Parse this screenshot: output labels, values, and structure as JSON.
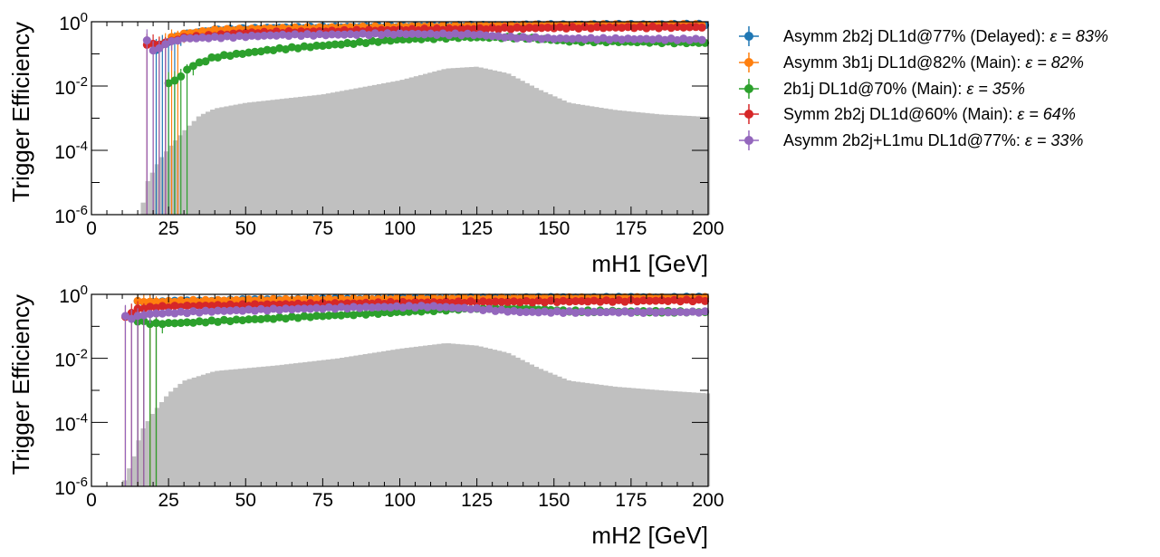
{
  "chart_data": [
    {
      "type": "scatter",
      "xlabel": "mH1 [GeV]",
      "ylabel": "Trigger Efficiency",
      "xlim": [
        0,
        200
      ],
      "ylim": [
        1e-06,
        1
      ],
      "yscale": "log",
      "x_ticks": [
        "0",
        "25",
        "50",
        "75",
        "100",
        "125",
        "150",
        "175",
        "200"
      ],
      "y_ticks": [
        {
          "base": "10",
          "exp": "-6"
        },
        {
          "base": "10",
          "exp": "-4"
        },
        {
          "base": "10",
          "exp": "-2"
        },
        {
          "base": "10",
          "exp": "0"
        }
      ],
      "hist_anchors": [
        [
          16,
          1e-06
        ],
        [
          18,
          1e-05
        ],
        [
          22,
          5e-05
        ],
        [
          26,
          0.00015
        ],
        [
          30,
          0.0004
        ],
        [
          35,
          0.0012
        ],
        [
          40,
          0.002
        ],
        [
          50,
          0.003
        ],
        [
          75,
          0.0055
        ],
        [
          100,
          0.015
        ],
        [
          115,
          0.035
        ],
        [
          125,
          0.04
        ],
        [
          135,
          0.025
        ],
        [
          145,
          0.008
        ],
        [
          155,
          0.003
        ],
        [
          170,
          0.0018
        ],
        [
          185,
          0.0013
        ],
        [
          200,
          0.0011
        ]
      ],
      "series_anchors": [
        [
          [
            21,
            0.14
          ],
          [
            25,
            0.25
          ],
          [
            30,
            0.4
          ],
          [
            40,
            0.55
          ],
          [
            60,
            0.65
          ],
          [
            100,
            0.72
          ],
          [
            150,
            0.8
          ],
          [
            200,
            0.82
          ]
        ],
        [
          [
            22,
            0.15
          ],
          [
            25,
            0.3
          ],
          [
            30,
            0.42
          ],
          [
            40,
            0.55
          ],
          [
            60,
            0.62
          ],
          [
            100,
            0.7
          ],
          [
            150,
            0.78
          ],
          [
            200,
            0.8
          ]
        ],
        [
          [
            25,
            0.012
          ],
          [
            27,
            0.015
          ],
          [
            29,
            0.02
          ],
          [
            32,
            0.04
          ],
          [
            40,
            0.08
          ],
          [
            60,
            0.14
          ],
          [
            100,
            0.28
          ],
          [
            120,
            0.33
          ],
          [
            140,
            0.32
          ],
          [
            155,
            0.25
          ],
          [
            200,
            0.22
          ]
        ],
        [
          [
            18,
            0.2
          ],
          [
            22,
            0.2
          ],
          [
            30,
            0.32
          ],
          [
            50,
            0.45
          ],
          [
            100,
            0.56
          ],
          [
            150,
            0.65
          ],
          [
            200,
            0.68
          ]
        ],
        [
          [
            18,
            0.25
          ],
          [
            21,
            0.1
          ],
          [
            23,
            0.2
          ],
          [
            30,
            0.3
          ],
          [
            60,
            0.38
          ],
          [
            100,
            0.42
          ],
          [
            125,
            0.4
          ],
          [
            135,
            0.33
          ],
          [
            150,
            0.3
          ],
          [
            200,
            0.28
          ]
        ]
      ]
    },
    {
      "type": "scatter",
      "xlabel": "mH2 [GeV]",
      "ylabel": "Trigger Efficiency",
      "xlim": [
        0,
        200
      ],
      "ylim": [
        1e-06,
        1
      ],
      "yscale": "log",
      "x_ticks": [
        "0",
        "25",
        "50",
        "75",
        "100",
        "125",
        "150",
        "175",
        "200"
      ],
      "y_ticks": [
        {
          "base": "10",
          "exp": "-6"
        },
        {
          "base": "10",
          "exp": "-4"
        },
        {
          "base": "10",
          "exp": "-2"
        },
        {
          "base": "10",
          "exp": "0"
        }
      ],
      "hist_anchors": [
        [
          10,
          1e-06
        ],
        [
          14,
          1e-05
        ],
        [
          16,
          5e-05
        ],
        [
          20,
          0.0002
        ],
        [
          25,
          0.0008
        ],
        [
          30,
          0.002
        ],
        [
          40,
          0.004
        ],
        [
          60,
          0.006
        ],
        [
          80,
          0.01
        ],
        [
          100,
          0.02
        ],
        [
          115,
          0.03
        ],
        [
          125,
          0.025
        ],
        [
          135,
          0.015
        ],
        [
          145,
          0.005
        ],
        [
          155,
          0.002
        ],
        [
          170,
          0.0013
        ],
        [
          185,
          0.001
        ],
        [
          200,
          0.0008
        ]
      ],
      "series_anchors": [
        [
          [
            15,
            0.6
          ],
          [
            20,
            0.55
          ],
          [
            30,
            0.62
          ],
          [
            60,
            0.68
          ],
          [
            100,
            0.74
          ],
          [
            150,
            0.78
          ],
          [
            200,
            0.8
          ]
        ],
        [
          [
            15,
            0.6
          ],
          [
            20,
            0.58
          ],
          [
            30,
            0.62
          ],
          [
            60,
            0.68
          ],
          [
            100,
            0.72
          ],
          [
            150,
            0.76
          ],
          [
            200,
            0.78
          ]
        ],
        [
          [
            15,
            0.15
          ],
          [
            20,
            0.12
          ],
          [
            30,
            0.13
          ],
          [
            60,
            0.18
          ],
          [
            100,
            0.28
          ],
          [
            120,
            0.35
          ],
          [
            140,
            0.37
          ],
          [
            155,
            0.3
          ],
          [
            200,
            0.28
          ]
        ],
        [
          [
            11,
            0.2
          ],
          [
            15,
            0.35
          ],
          [
            20,
            0.4
          ],
          [
            40,
            0.45
          ],
          [
            100,
            0.55
          ],
          [
            150,
            0.6
          ],
          [
            200,
            0.65
          ]
        ],
        [
          [
            11,
            0.2
          ],
          [
            13,
            0.18
          ],
          [
            16,
            0.22
          ],
          [
            20,
            0.25
          ],
          [
            40,
            0.3
          ],
          [
            80,
            0.38
          ],
          [
            110,
            0.42
          ],
          [
            125,
            0.35
          ],
          [
            140,
            0.28
          ],
          [
            200,
            0.28
          ]
        ]
      ]
    }
  ],
  "legend": [
    {
      "name": "Asymm 2b2j DL1d@77% (Delayed): ",
      "eps": "ε = 83%",
      "color": "#1f77b4"
    },
    {
      "name": "Asymm 3b1j DL1d@82% (Main): ",
      "eps": "ε = 82%",
      "color": "#ff7f0e"
    },
    {
      "name": "2b1j DL1d@70% (Main): ",
      "eps": "ε = 35%",
      "color": "#2ca02c"
    },
    {
      "name": "Symm 2b2j DL1d@60% (Main): ",
      "eps": "ε = 64%",
      "color": "#d62728"
    },
    {
      "name": "Asymm 2b2j+L1mu DL1d@77%: ",
      "eps": "ε = 33%",
      "color": "#9467bd"
    }
  ],
  "hist_color": "#c0c0c0"
}
